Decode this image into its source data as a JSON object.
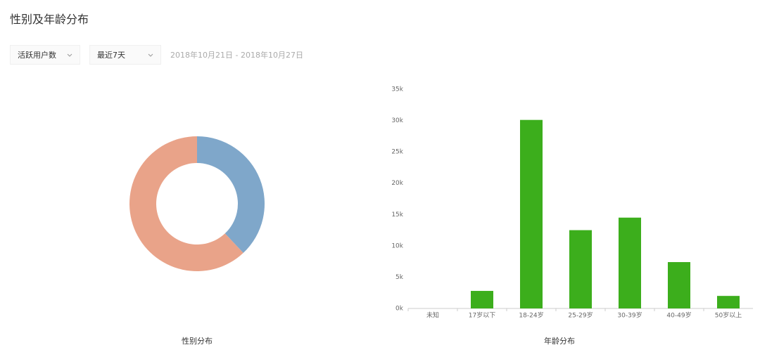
{
  "header": {
    "title": "性别及年龄分布",
    "filters": [
      "活跃用户数",
      "最近7天"
    ],
    "date_range": "2018年10月21日 - 2018年10月27日"
  },
  "chart_data": [
    {
      "type": "pie",
      "title": "性别分布",
      "values": [
        38,
        62
      ],
      "colors": [
        "#7fa7ca",
        "#e9a389"
      ],
      "donut": true
    },
    {
      "type": "bar",
      "title": "年龄分布",
      "categories": [
        "未知",
        "17岁以下",
        "18-24岁",
        "25-29岁",
        "30-39岁",
        "40-49岁",
        "50岁以上"
      ],
      "values": [
        0,
        2800,
        30100,
        12500,
        14500,
        7400,
        2000
      ],
      "color": "#3cae1c",
      "ylim": [
        0,
        35000
      ],
      "yticks": [
        {
          "value": 0,
          "label": "0k"
        },
        {
          "value": 5000,
          "label": "5k"
        },
        {
          "value": 10000,
          "label": "10k"
        },
        {
          "value": 15000,
          "label": "15k"
        },
        {
          "value": 20000,
          "label": "20k"
        },
        {
          "value": 25000,
          "label": "25k"
        },
        {
          "value": 30000,
          "label": "30k"
        },
        {
          "value": 35000,
          "label": "35k"
        }
      ]
    }
  ]
}
